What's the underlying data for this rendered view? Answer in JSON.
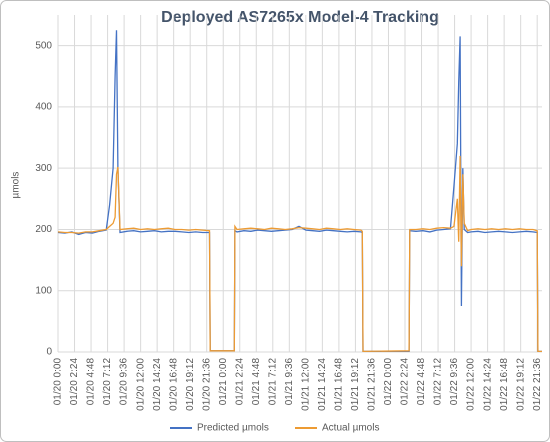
{
  "chart_data": {
    "type": "line",
    "title": "Deployed AS7265x Model-4 Tracking",
    "y_label": "µmols",
    "x": [
      0,
      1,
      2,
      3,
      4,
      5,
      6,
      7,
      7.5,
      8,
      8.3,
      8.5,
      8.7,
      9,
      10,
      11,
      12,
      13,
      14,
      15,
      16,
      17,
      18,
      19,
      20,
      21,
      22,
      22.1,
      25.6,
      25.7,
      26,
      27,
      28,
      29,
      30,
      31,
      32,
      33,
      34,
      35,
      36,
      37,
      38,
      39,
      40,
      41,
      42,
      43,
      44,
      44.2,
      44.3,
      51,
      51.1,
      52,
      53,
      54,
      55,
      56,
      57,
      57.5,
      58,
      58.2,
      58.4,
      58.6,
      58.8,
      59,
      59.5,
      60,
      61,
      62,
      63,
      64,
      65,
      66,
      67,
      68,
      69,
      69.6,
      69.7,
      70.3
    ],
    "series": [
      {
        "name": "Predicted µmols",
        "color": "#4472c4",
        "values": [
          195,
          194,
          196,
          192,
          195,
          194,
          197,
          199,
          240,
          300,
          450,
          525,
          300,
          195,
          197,
          198,
          196,
          197,
          198,
          196,
          197,
          197,
          196,
          195,
          196,
          195,
          195,
          2,
          2,
          198,
          196,
          198,
          197,
          199,
          198,
          197,
          198,
          199,
          200,
          205,
          199,
          198,
          197,
          199,
          198,
          197,
          196,
          197,
          196,
          195,
          1,
          1,
          198,
          197,
          198,
          196,
          199,
          200,
          201,
          270,
          340,
          440,
          515,
          75,
          300,
          200,
          195,
          196,
          197,
          195,
          196,
          197,
          196,
          195,
          196,
          197,
          196,
          195,
          1,
          1
        ]
      },
      {
        "name": "Actual µmols",
        "color": "#ed9b33",
        "values": [
          196,
          195,
          195,
          194,
          196,
          196,
          198,
          200,
          205,
          210,
          220,
          290,
          302,
          200,
          201,
          202,
          200,
          201,
          200,
          201,
          202,
          200,
          200,
          199,
          200,
          199,
          198,
          2,
          2,
          205,
          200,
          201,
          202,
          201,
          200,
          202,
          201,
          200,
          201,
          203,
          202,
          201,
          200,
          202,
          201,
          200,
          201,
          200,
          199,
          197,
          1,
          2,
          200,
          200,
          201,
          200,
          202,
          203,
          202,
          205,
          250,
          180,
          320,
          140,
          290,
          210,
          198,
          200,
          201,
          200,
          201,
          200,
          201,
          200,
          201,
          200,
          200,
          198,
          1,
          1
        ]
      }
    ],
    "xlim": [
      0,
      70.3
    ],
    "xticks": [
      {
        "value": 0,
        "label": "01/20 0:00"
      },
      {
        "value": 2.4,
        "label": "01/20 2:24"
      },
      {
        "value": 4.8,
        "label": "01/20 4:48"
      },
      {
        "value": 7.2,
        "label": "01/20 7:12"
      },
      {
        "value": 9.6,
        "label": "01/20 9:36"
      },
      {
        "value": 12,
        "label": "01/20 12:00"
      },
      {
        "value": 14.4,
        "label": "01/20 14:24"
      },
      {
        "value": 16.8,
        "label": "01/20 16:48"
      },
      {
        "value": 19.2,
        "label": "01/20 19:12"
      },
      {
        "value": 21.6,
        "label": "01/20 21:36"
      },
      {
        "value": 24,
        "label": "01/21 0:00"
      },
      {
        "value": 26.4,
        "label": "01/21 2:24"
      },
      {
        "value": 28.8,
        "label": "01/21 4:48"
      },
      {
        "value": 31.2,
        "label": "01/21 7:12"
      },
      {
        "value": 33.6,
        "label": "01/21 9:36"
      },
      {
        "value": 36,
        "label": "01/21 12:00"
      },
      {
        "value": 38.4,
        "label": "01/21 14:24"
      },
      {
        "value": 40.8,
        "label": "01/21 16:48"
      },
      {
        "value": 43.2,
        "label": "01/21 19:12"
      },
      {
        "value": 45.6,
        "label": "01/21 21:36"
      },
      {
        "value": 48,
        "label": "01/22 0:00"
      },
      {
        "value": 50.4,
        "label": "01/22 2:24"
      },
      {
        "value": 52.8,
        "label": "01/22 4:48"
      },
      {
        "value": 55.2,
        "label": "01/22 7:12"
      },
      {
        "value": 57.6,
        "label": "01/22 9:36"
      },
      {
        "value": 60,
        "label": "01/22 12:00"
      },
      {
        "value": 62.4,
        "label": "01/22 14:24"
      },
      {
        "value": 64.8,
        "label": "01/22 16:48"
      },
      {
        "value": 67.2,
        "label": "01/22 19:12"
      },
      {
        "value": 69.6,
        "label": "01/22 21:36"
      }
    ],
    "ylim": [
      0,
      550
    ],
    "yticks": [
      0,
      100,
      200,
      300,
      400,
      500
    ],
    "grid": true,
    "legend": "bottom"
  }
}
